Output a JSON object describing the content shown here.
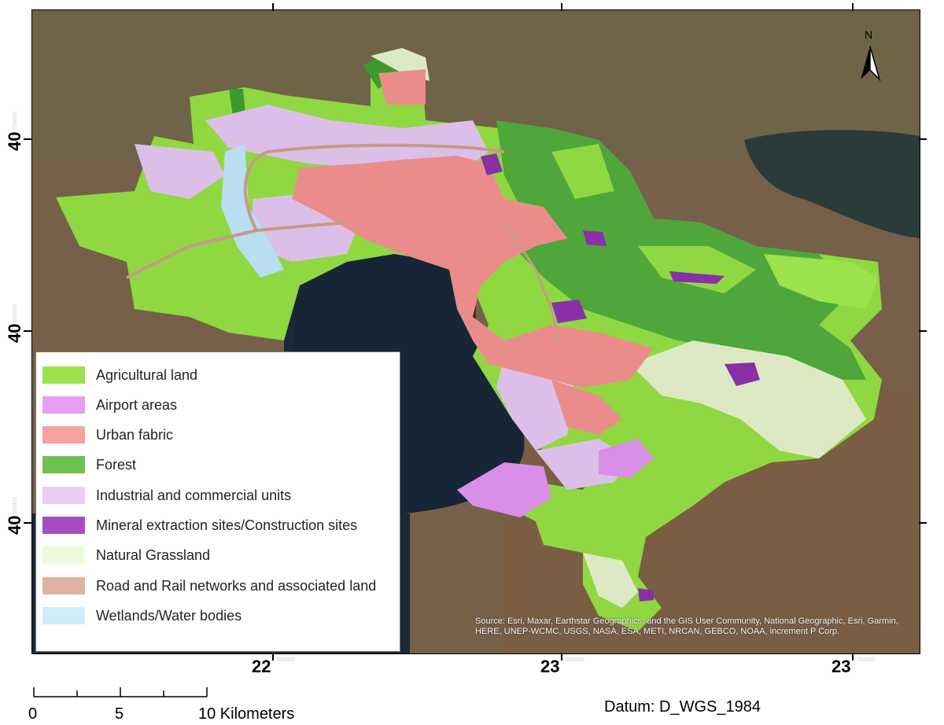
{
  "legend": {
    "items": [
      {
        "label": "Agricultural land",
        "color": "#9be34a"
      },
      {
        "label": "Airport areas",
        "color": "#e79ef2"
      },
      {
        "label": "Urban fabric",
        "color": "#f4a3a0"
      },
      {
        "label": "Forest",
        "color": "#6dc250"
      },
      {
        "label": "Industrial and commercial units",
        "color": "#eacdf5"
      },
      {
        "label": "Mineral extraction sites/Construction sites",
        "color": "#a64dc0"
      },
      {
        "label": "Natural Grassland",
        "color": "#eefadc"
      },
      {
        "label": "Road and Rail networks and associated land",
        "color": "#dfb1a2"
      },
      {
        "label": "Wetlands/Water bodies",
        "color": "#d2ebf9"
      }
    ]
  },
  "axes": {
    "left_labels": [
      "40",
      "40",
      "40"
    ],
    "bottom_labels": [
      "22",
      "23",
      "23"
    ],
    "small_left": [
      "700000",
      "600000",
      "500000"
    ],
    "small_bottom": [
      "650000",
      "600000",
      "750000"
    ]
  },
  "north_label": "N",
  "attribution": "Source: Esri, Maxar, Earthstar Geographics, and the GIS User Community, National Geographic, Esri, Garmin, HERE, UNEP-WCMC, USGS, NASA, ESA, METI, NRCAN, GEBCO, NOAA, increment P Corp.",
  "scale": {
    "labels": [
      "0",
      "5",
      "10 Kilometers"
    ]
  },
  "datum": "Datum: D_WGS_1984"
}
